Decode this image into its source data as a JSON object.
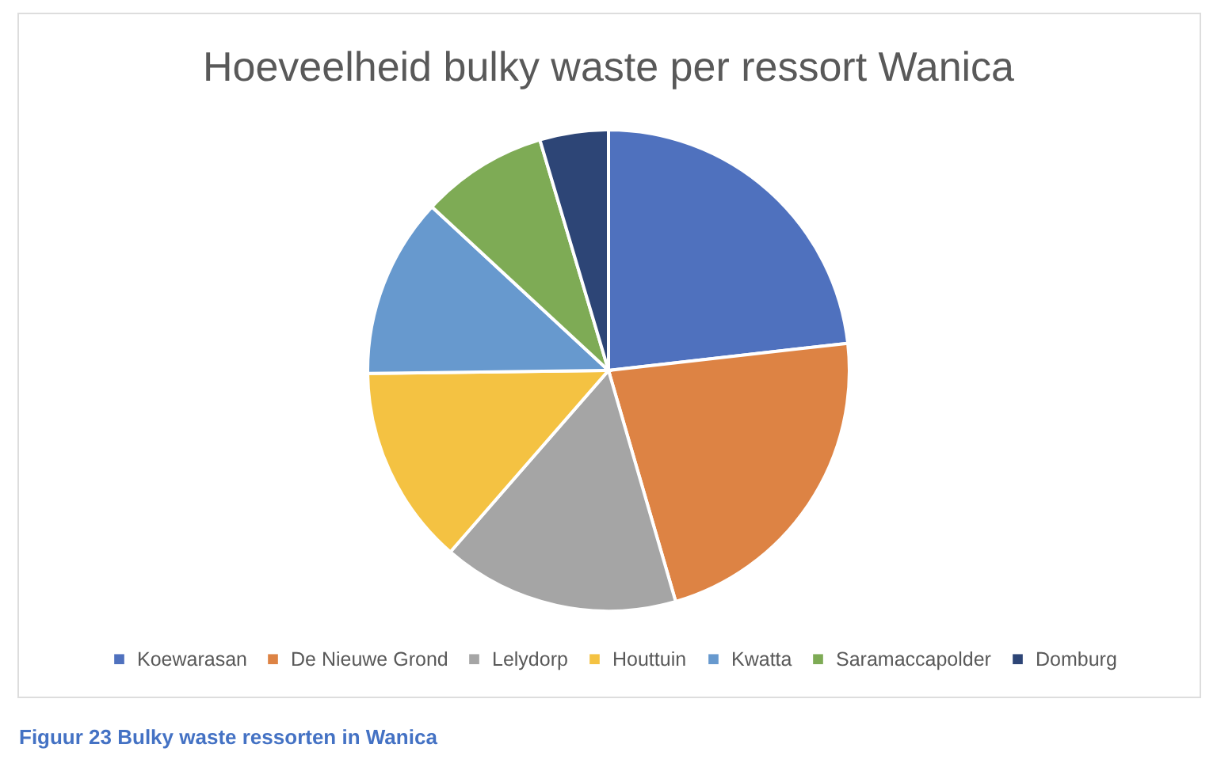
{
  "chart_data": {
    "type": "pie",
    "title": "Hoeveelheid bulky waste per ressort Wanica",
    "categories": [
      "Koewarasan",
      "De Nieuwe Grond",
      "Lelydorp",
      "Houttuin",
      "Kwatta",
      "Saramaccapolder",
      "Domburg"
    ],
    "values": [
      23.2,
      22.3,
      15.9,
      13.4,
      12.1,
      8.5,
      4.6
    ],
    "colors": [
      "#4f71be",
      "#dd8344",
      "#a5a5a5",
      "#f4c242",
      "#6799ce",
      "#7eab55",
      "#2d4576"
    ],
    "legend": "bottom",
    "annotations": [
      "Figuur 23 Bulky waste ressorten in Wanica"
    ]
  }
}
